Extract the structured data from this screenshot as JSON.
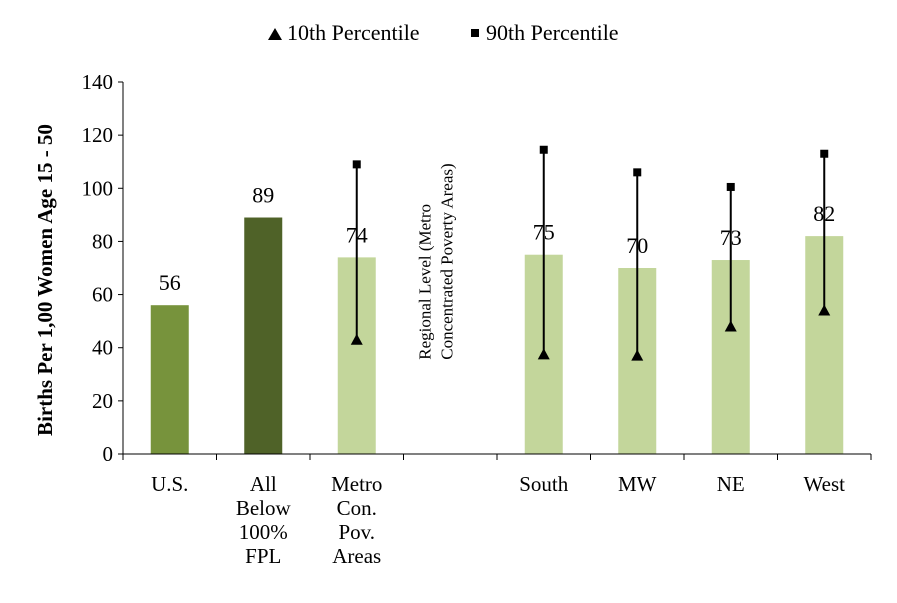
{
  "chart_data": {
    "type": "bar",
    "title": "",
    "xlabel": "",
    "ylabel": "Births Per 1,00 Women Age 15 - 50",
    "ylim": [
      0,
      140
    ],
    "yticks": [
      0,
      20,
      40,
      60,
      80,
      100,
      120,
      140
    ],
    "grid": false,
    "legend_position": "top",
    "categories": [
      [
        "U.S."
      ],
      [
        "All",
        "Below",
        "100%",
        "FPL"
      ],
      [
        "Metro",
        "Con.",
        "Pov.",
        "Areas"
      ],
      [],
      [
        "South"
      ],
      [
        "MW"
      ],
      [
        "NE"
      ],
      [
        "West"
      ]
    ],
    "values": [
      56,
      89,
      74,
      null,
      75,
      70,
      73,
      82
    ],
    "data_labels": [
      "56",
      "89",
      "74",
      "",
      "75",
      "70",
      "73",
      "82"
    ],
    "bar_colors": [
      "#77933c",
      "#4f6228",
      "#c3d69b",
      null,
      "#c3d69b",
      "#c3d69b",
      "#c3d69b",
      "#c3d69b"
    ],
    "series": [
      {
        "name": "10th Percentile",
        "marker": "triangle",
        "values": [
          null,
          null,
          43,
          null,
          37.5,
          37,
          48,
          54
        ]
      },
      {
        "name": "90th Percentile",
        "marker": "square",
        "values": [
          null,
          null,
          109,
          null,
          114.5,
          106,
          100.5,
          113
        ]
      }
    ],
    "annotation": [
      "Regional Level (Metro",
      "Concentrated Poverty Areas)"
    ]
  }
}
